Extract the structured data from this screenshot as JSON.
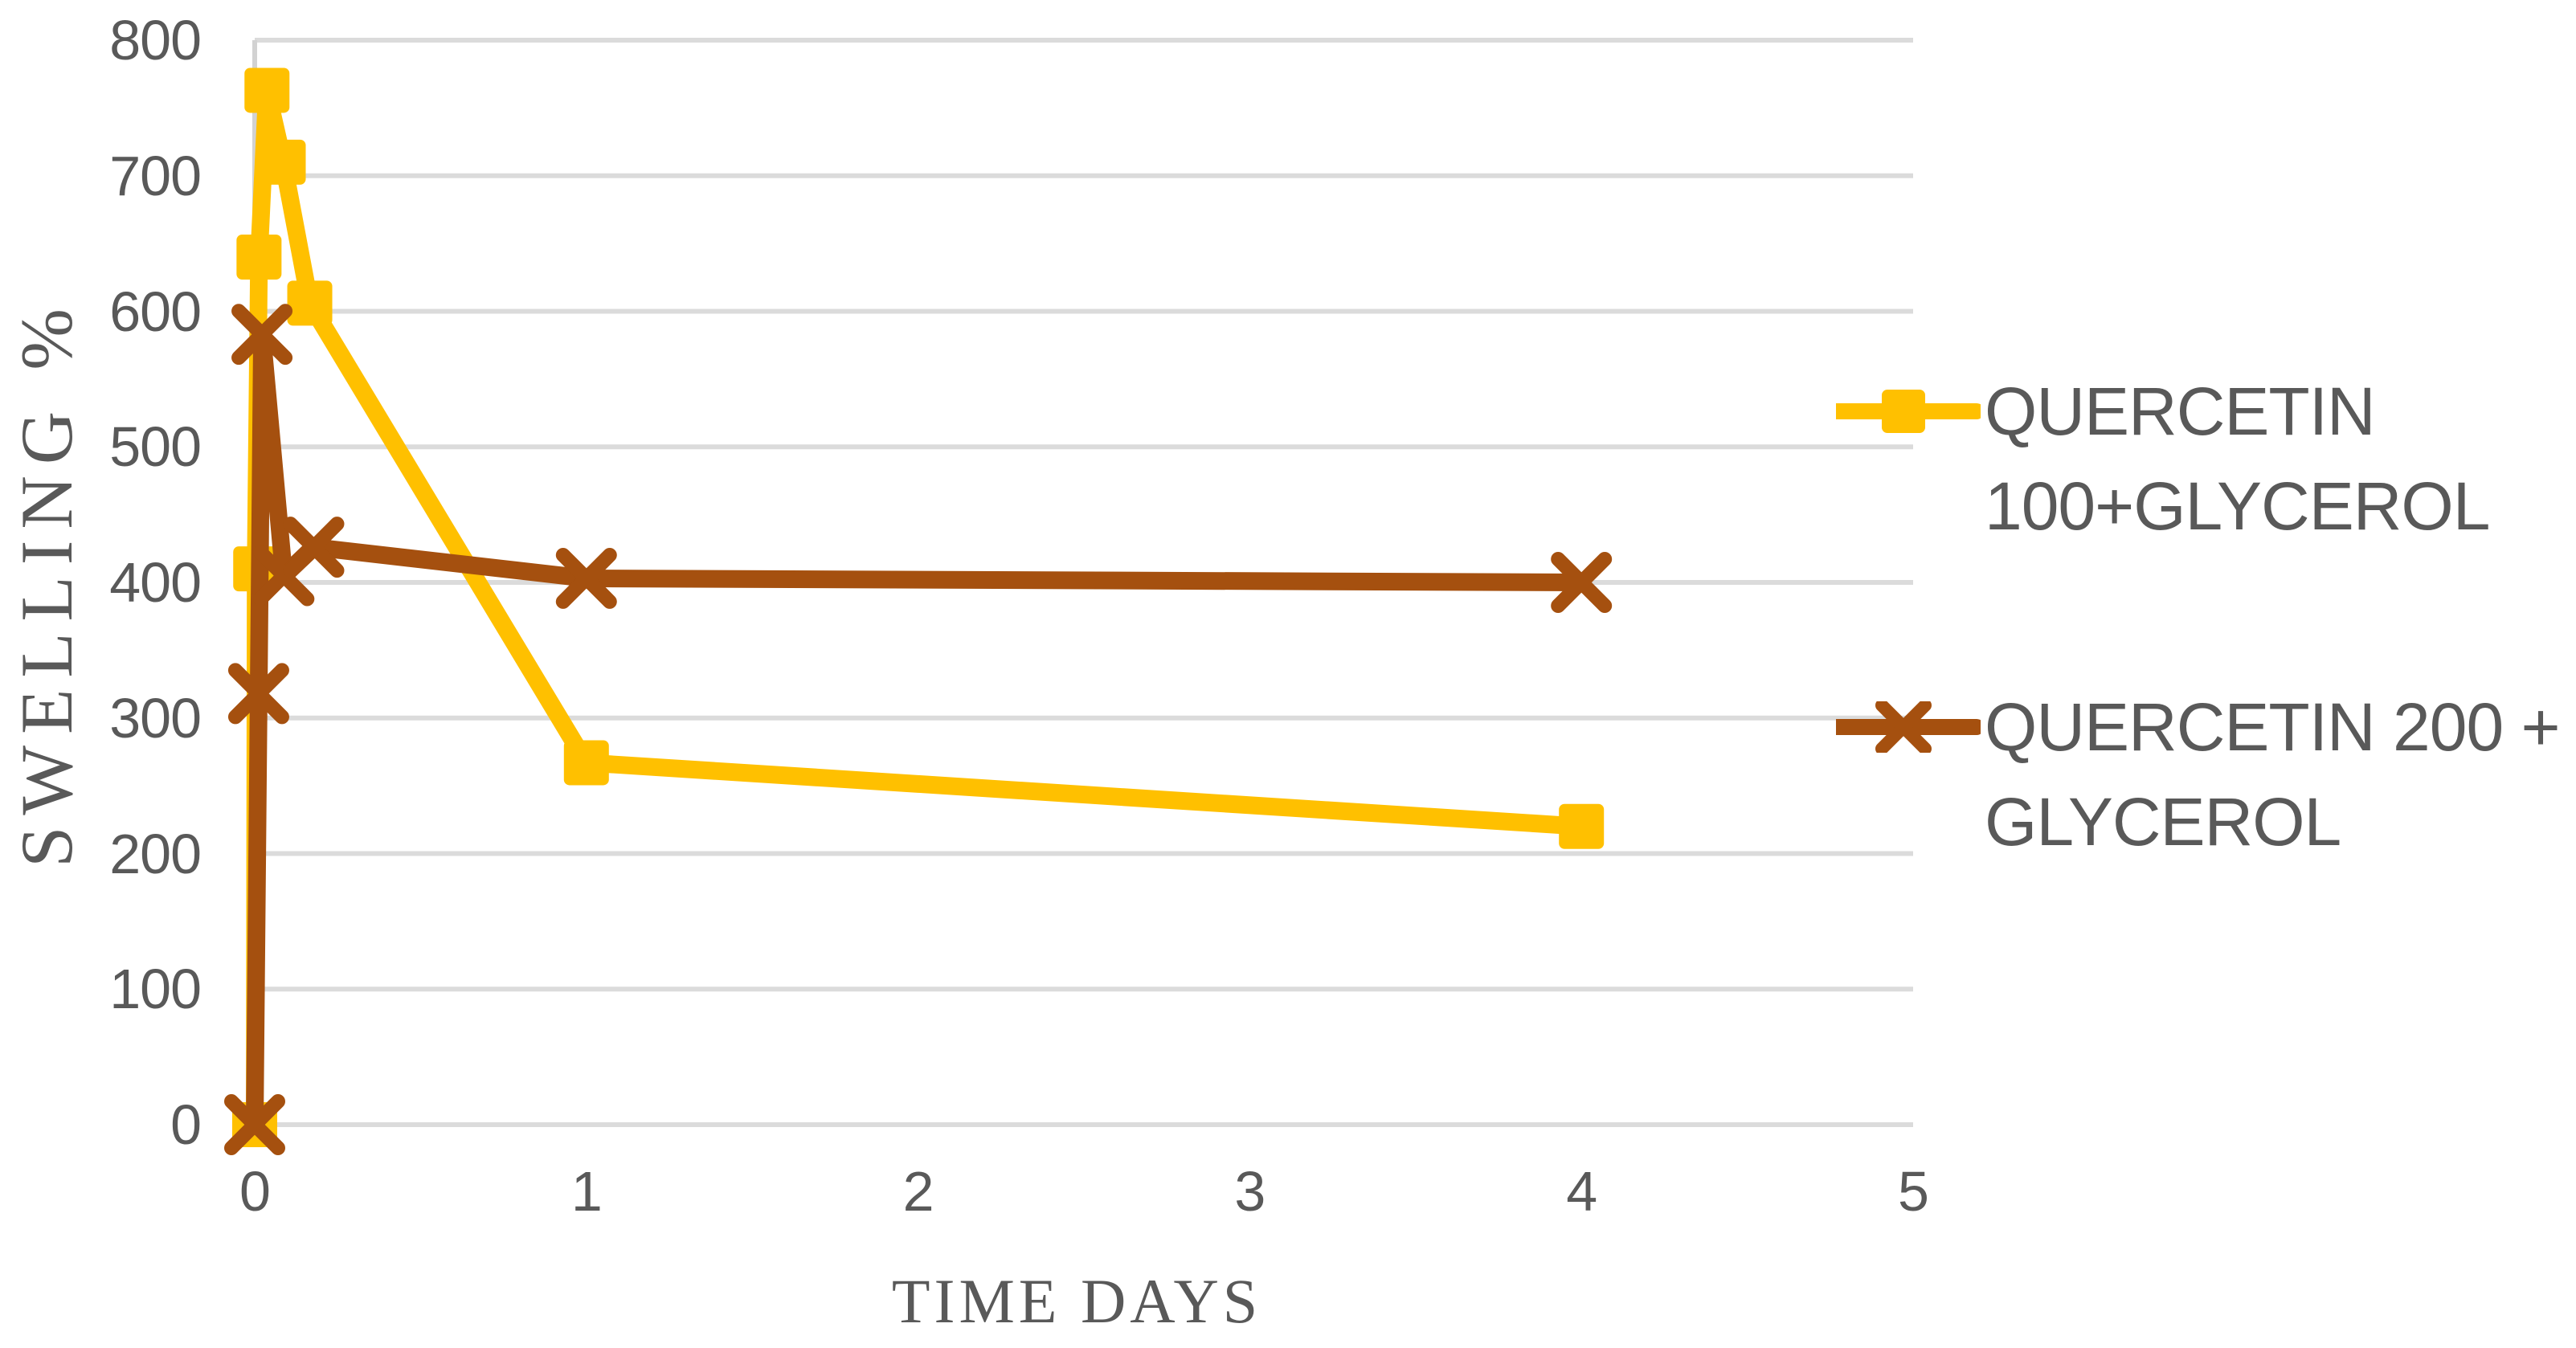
{
  "chart_data": {
    "type": "line",
    "title": "",
    "xlabel": "TIME DAYS",
    "ylabel": "SWELLING %",
    "xlim": [
      0,
      5
    ],
    "ylim": [
      0,
      800
    ],
    "x_ticks": [
      "0",
      "1",
      "2",
      "3",
      "4",
      "5"
    ],
    "x_tick_values": [
      0,
      1,
      2,
      3,
      4,
      5
    ],
    "y_ticks": [
      "0",
      "100",
      "200",
      "300",
      "400",
      "500",
      "600",
      "700",
      "800"
    ],
    "y_tick_values": [
      0,
      100,
      200,
      300,
      400,
      500,
      600,
      700,
      800
    ],
    "grid": "horizontal-gridlines-on",
    "legend_position": "right",
    "colors": {
      "grid": "#DBDBDB",
      "axis": "#D2D2D2",
      "text": "#595959",
      "series1": "#FFC000",
      "series2": "#A5500F"
    },
    "series": [
      {
        "name": "QUERCETIN 100+GLYCEROL",
        "label_lines": [
          "QUERCETIN",
          "100+GLYCEROL"
        ],
        "color": "#FFC000",
        "marker": "square",
        "points": [
          [
            0,
            0
          ],
          [
            0.003,
            410
          ],
          [
            0.013,
            640
          ],
          [
            0.037,
            763
          ],
          [
            0.086,
            710
          ],
          [
            0.166,
            606
          ],
          [
            1,
            267
          ],
          [
            4,
            220
          ]
        ]
      },
      {
        "name": "QUERCETIN 200 + GLYCEROL",
        "label_lines": [
          "QUERCETIN 200 +",
          "GLYCEROL"
        ],
        "color": "#A5500F",
        "marker": "x",
        "points": [
          [
            0,
            0
          ],
          [
            0.012,
            318
          ],
          [
            0.022,
            583
          ],
          [
            0.088,
            405
          ],
          [
            0.178,
            426
          ],
          [
            1,
            403
          ],
          [
            4,
            400
          ]
        ]
      }
    ]
  }
}
